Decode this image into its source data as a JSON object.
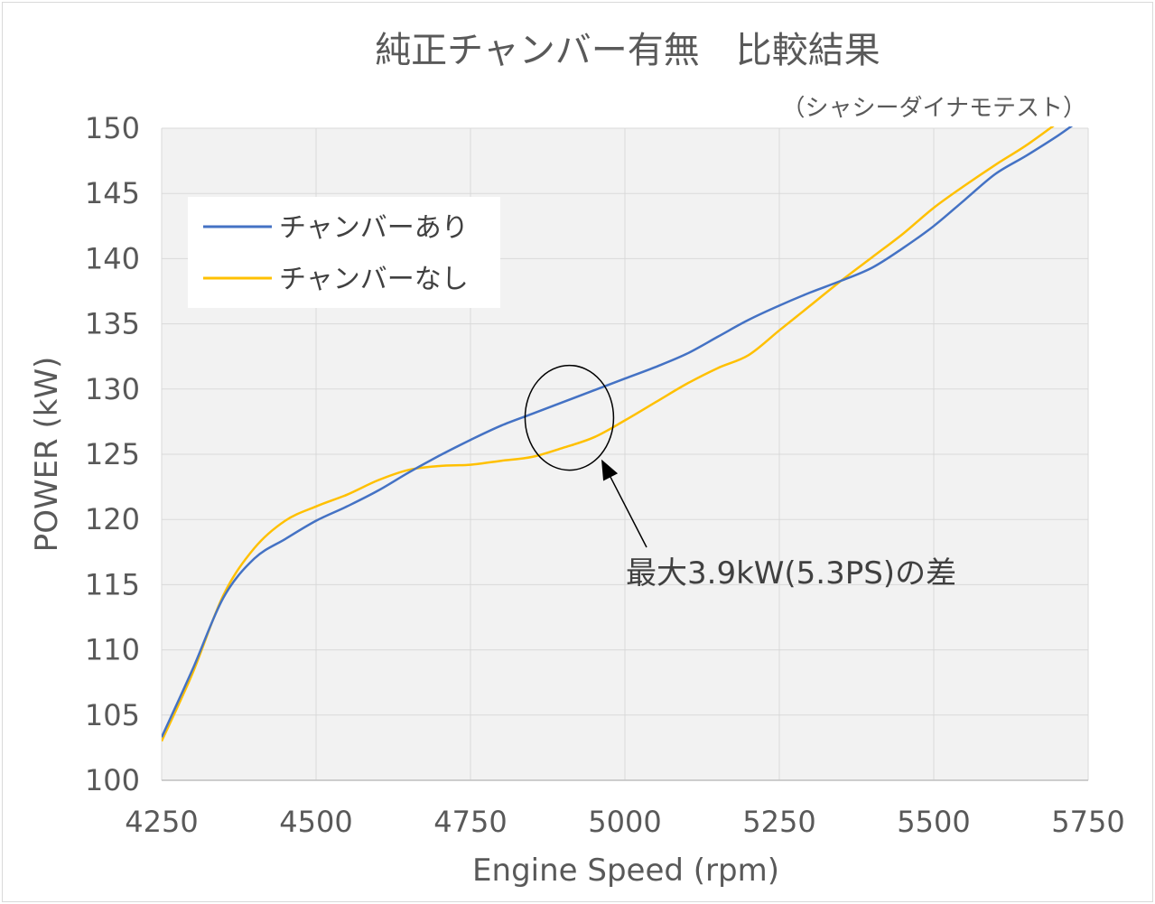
{
  "chart_data": {
    "type": "line",
    "title": "純正チャンバー有無　比較結果",
    "subtitle": "（シャシーダイナモテスト）",
    "xlabel": "Engine Speed (rpm)",
    "ylabel": "POWER (kW)",
    "xlim": [
      4250,
      5750
    ],
    "ylim": [
      100,
      150
    ],
    "x_ticks": [
      "4250",
      "4500",
      "4750",
      "5000",
      "5250",
      "5500",
      "5750"
    ],
    "y_ticks": [
      "150",
      "145",
      "140",
      "135",
      "130",
      "125",
      "120",
      "115",
      "110",
      "105",
      "100"
    ],
    "grid": true,
    "legend": "top-left",
    "series": [
      {
        "name": "チャンバーあり",
        "color": "#4472c4",
        "x": [
          4250,
          4300,
          4350,
          4400,
          4450,
          4500,
          4550,
          4600,
          4650,
          4700,
          4750,
          4800,
          4850,
          4900,
          4950,
          5000,
          5050,
          5100,
          5150,
          5200,
          5250,
          5300,
          5350,
          5400,
          5450,
          5500,
          5550,
          5600,
          5650,
          5700,
          5730
        ],
        "values": [
          103.3,
          108.5,
          114.0,
          117.0,
          118.5,
          119.9,
          121.0,
          122.2,
          123.6,
          124.9,
          126.1,
          127.2,
          128.1,
          129.0,
          129.9,
          130.8,
          131.7,
          132.7,
          134.0,
          135.3,
          136.4,
          137.4,
          138.3,
          139.3,
          140.8,
          142.5,
          144.5,
          146.5,
          147.9,
          149.4,
          150.4
        ]
      },
      {
        "name": "チャンバーなし",
        "color": "#ffc000",
        "x": [
          4250,
          4300,
          4350,
          4400,
          4450,
          4500,
          4550,
          4600,
          4650,
          4700,
          4750,
          4800,
          4850,
          4900,
          4950,
          5000,
          5050,
          5100,
          5150,
          5200,
          5250,
          5300,
          5350,
          5400,
          5450,
          5500,
          5550,
          5600,
          5650,
          5700
        ],
        "values": [
          103.0,
          108.2,
          114.2,
          117.8,
          119.9,
          121.0,
          121.9,
          123.0,
          123.8,
          124.1,
          124.2,
          124.5,
          124.8,
          125.5,
          126.3,
          127.6,
          129.0,
          130.4,
          131.6,
          132.6,
          134.5,
          136.4,
          138.3,
          140.1,
          141.9,
          143.9,
          145.6,
          147.2,
          148.7,
          150.4
        ]
      }
    ],
    "annotation": {
      "text": "最大3.9kW(5.3PS)の差",
      "ellipse_at": {
        "x": 4910,
        "y": 127.8
      },
      "arrow_tip": {
        "x": 4962,
        "y": 124.6
      }
    }
  }
}
